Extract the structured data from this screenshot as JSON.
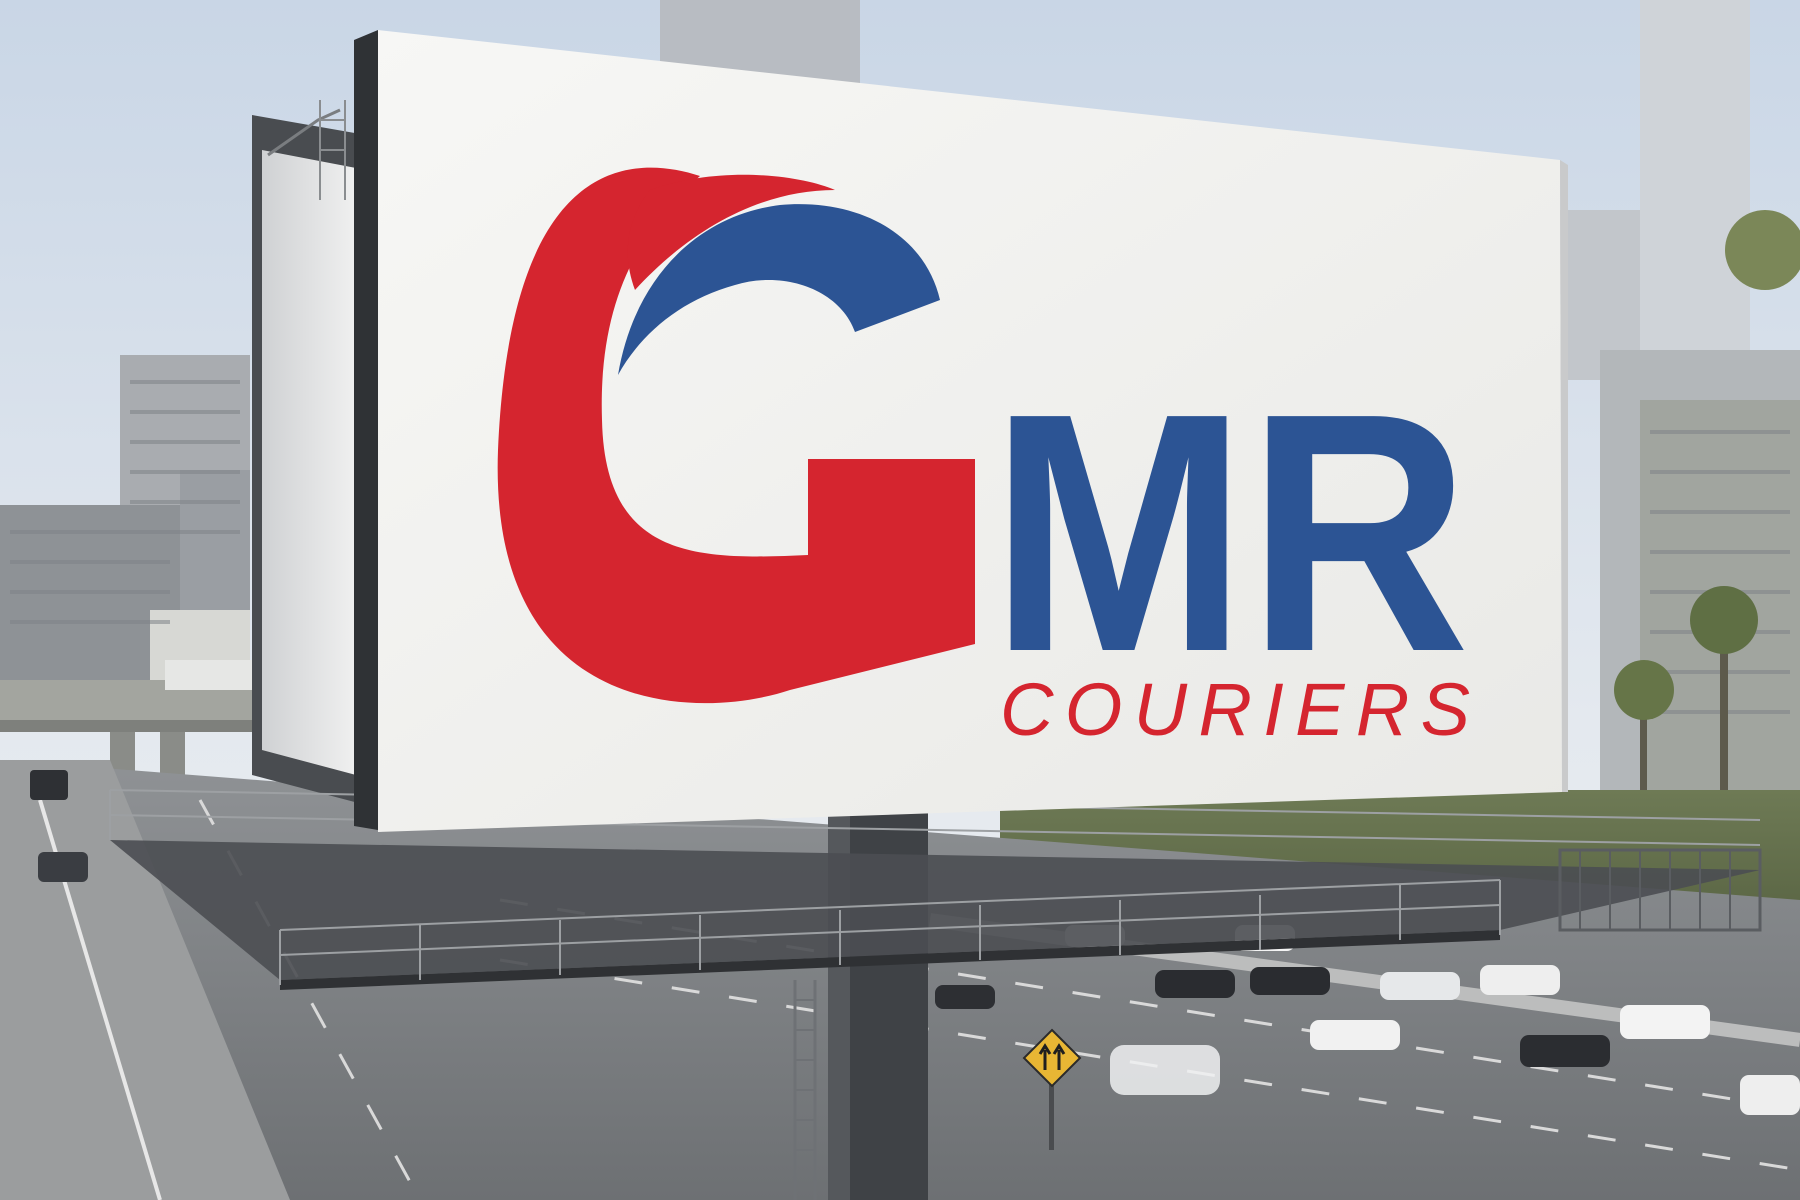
{
  "billboard": {
    "brand_letters": "MR",
    "brand_initial": "G",
    "tagline": "COURIERS",
    "colors": {
      "red": "#d5252f",
      "blue": "#2c5494",
      "panel": "#f4f4f2"
    }
  },
  "road_sign": {
    "icon": "lane-merge-arrows-icon"
  }
}
